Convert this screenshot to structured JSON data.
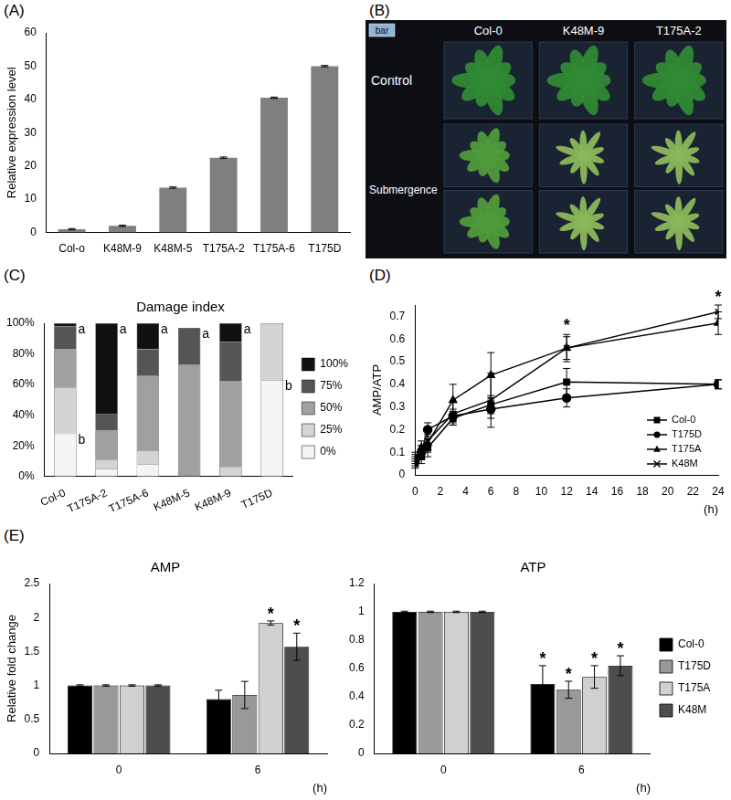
{
  "chart_data": [
    {
      "panel": "(A)",
      "type": "bar",
      "categories": [
        "Col-o",
        "K48M-9",
        "K48M-5",
        "T175A-2",
        "T175A-6",
        "T175D"
      ],
      "values": [
        1,
        2,
        13.5,
        22.5,
        40.5,
        50
      ],
      "errors": [
        0.2,
        0.2,
        0.2,
        0.2,
        0.2,
        0.2
      ],
      "color": "#7f7f7f",
      "y_label": "Relative expression level",
      "ylim": [
        0,
        60
      ],
      "yticks": [
        0,
        10,
        20,
        30,
        40,
        50,
        60
      ],
      "grid": false
    },
    {
      "panel": "(C)",
      "type": "bar",
      "title": "Damage index",
      "stacked": true,
      "categories": [
        "Col-0",
        "T175A-2",
        "T175A-6",
        "K48M-5",
        "K48M-9",
        "T175D"
      ],
      "series": [
        {
          "name": "0%",
          "color": "#f5f5f5",
          "values": [
            28,
            5,
            8,
            0,
            0,
            63
          ]
        },
        {
          "name": "25%",
          "color": "#d4d4d4",
          "values": [
            30,
            6,
            9,
            0,
            6,
            37
          ]
        },
        {
          "name": "50%",
          "color": "#a0a0a0",
          "values": [
            25,
            19,
            49,
            73,
            56,
            0
          ]
        },
        {
          "name": "75%",
          "color": "#555555",
          "values": [
            15,
            11,
            17,
            24,
            26,
            0
          ]
        },
        {
          "name": "100%",
          "color": "#111111",
          "values": [
            2,
            59,
            17,
            0,
            12,
            0
          ]
        }
      ],
      "ylim": [
        0,
        100
      ],
      "yticks": [
        {
          "value": 0,
          "label": "0%"
        },
        {
          "value": 20,
          "label": "20%"
        },
        {
          "value": 40,
          "label": "40%"
        },
        {
          "value": 60,
          "label": "60%"
        },
        {
          "value": 80,
          "label": "80%"
        },
        {
          "value": 100,
          "label": "100%"
        }
      ],
      "legend": "right",
      "grid": false,
      "annotations": [
        {
          "category": "Col-0",
          "value": 100,
          "text": "a"
        },
        {
          "category": "Col-0",
          "value": 28,
          "text": "b"
        },
        {
          "category": "T175A-2",
          "value": 100,
          "text": "a"
        },
        {
          "category": "T175A-6",
          "value": 100,
          "text": "a"
        },
        {
          "category": "K48M-5",
          "value": 97,
          "text": "a"
        },
        {
          "category": "K48M-9",
          "value": 100,
          "text": "a"
        },
        {
          "category": "T175D",
          "value": 63,
          "text": "b"
        }
      ]
    },
    {
      "panel": "(D)",
      "type": "line",
      "x": [
        0,
        0.5,
        1,
        3,
        6,
        12,
        24
      ],
      "series": [
        {
          "name": "Col-0",
          "color": "#000000",
          "marker": "square",
          "values": [
            0.05,
            0.08,
            0.12,
            0.25,
            0.31,
            0.41,
            0.4
          ],
          "errors": [
            0.02,
            0.03,
            0.04,
            0.03,
            0.04,
            0.06,
            0.02
          ]
        },
        {
          "name": "T175D",
          "color": "#000000",
          "marker": "circle",
          "values": [
            0.06,
            0.1,
            0.2,
            0.26,
            0.29,
            0.34,
            0.4
          ],
          "errors": [
            0.02,
            0.03,
            0.03,
            0.03,
            0.04,
            0.04,
            0.02
          ]
        },
        {
          "name": "T175A",
          "color": "#000000",
          "marker": "triangle",
          "values": [
            0.07,
            0.12,
            0.14,
            0.33,
            0.44,
            0.56,
            0.67
          ],
          "errors": [
            0.02,
            0.03,
            0.04,
            0.07,
            0.1,
            0.06,
            0.05
          ]
        },
        {
          "name": "K48M",
          "color": "#000000",
          "marker": "cross",
          "values": [
            0.08,
            0.1,
            0.15,
            0.27,
            0.33,
            0.56,
            0.72
          ],
          "errors": [
            0.02,
            0.03,
            0.04,
            0.05,
            0.12,
            0.05,
            0.03
          ]
        }
      ],
      "x_label": "(h)",
      "y_label": "AMP/ATP",
      "xlim": [
        0,
        24
      ],
      "xticks": [
        0,
        2,
        4,
        6,
        8,
        10,
        12,
        14,
        16,
        18,
        20,
        22,
        24
      ],
      "ylim": [
        0,
        0.75
      ],
      "yticks": [
        0,
        0.1,
        0.2,
        0.3,
        0.4,
        0.5,
        0.6,
        0.7
      ],
      "legend": "lower right",
      "grid": false,
      "annotations": [
        {
          "x": 12,
          "y": 0.62,
          "text": "*"
        },
        {
          "x": 24,
          "y": 0.745,
          "text": "*"
        }
      ]
    },
    {
      "panel": "(E)",
      "type": "bar",
      "title": "AMP",
      "categories": [
        "0",
        "6"
      ],
      "series": [
        {
          "name": "Col-0",
          "color": "#000000",
          "values": [
            1,
            0.8
          ],
          "errors": [
            0.01,
            0.13
          ]
        },
        {
          "name": "T175D",
          "color": "#999999",
          "values": [
            1,
            0.86
          ],
          "errors": [
            0.01,
            0.2
          ]
        },
        {
          "name": "T175A",
          "color": "#d0d0d0",
          "values": [
            1,
            1.92
          ],
          "errors": [
            0.01,
            0.03
          ]
        },
        {
          "name": "K48M",
          "color": "#4d4d4d",
          "values": [
            1,
            1.57
          ],
          "errors": [
            0.01,
            0.2
          ]
        }
      ],
      "x_label": "(h)",
      "y_label": "Relative fold change",
      "ylim": [
        0,
        2.5
      ],
      "yticks": [
        0,
        0.5,
        1,
        1.5,
        2,
        2.5
      ],
      "grid": false,
      "annotations": [
        {
          "category": "6",
          "series": "T175A",
          "text": "*"
        },
        {
          "category": "6",
          "series": "K48M",
          "text": "*"
        }
      ]
    },
    {
      "type": "bar",
      "title": "ATP",
      "categories": [
        "0",
        "6"
      ],
      "series": [
        {
          "name": "Col-0",
          "color": "#000000",
          "values": [
            1,
            0.49
          ],
          "errors": [
            0.005,
            0.13
          ]
        },
        {
          "name": "T175D",
          "color": "#999999",
          "values": [
            1,
            0.45
          ],
          "errors": [
            0.005,
            0.06
          ]
        },
        {
          "name": "T175A",
          "color": "#d0d0d0",
          "values": [
            1,
            0.54
          ],
          "errors": [
            0.005,
            0.08
          ]
        },
        {
          "name": "K48M",
          "color": "#4d4d4d",
          "values": [
            1,
            0.62
          ],
          "errors": [
            0.005,
            0.07
          ]
        }
      ],
      "x_label": "(h)",
      "ylim": [
        0,
        1.2
      ],
      "yticks": [
        0,
        0.2,
        0.4,
        0.6,
        0.8,
        1,
        1.2
      ],
      "grid": false,
      "legend": "right",
      "annotations": [
        {
          "category": "6",
          "series": "Col-0",
          "text": "*"
        },
        {
          "category": "6",
          "series": "T175D",
          "text": "*"
        },
        {
          "category": "6",
          "series": "T175A",
          "text": "*"
        },
        {
          "category": "6",
          "series": "K48M",
          "text": "*"
        }
      ]
    }
  ],
  "photo": {
    "panel": "(B)",
    "columns": [
      "Col-0",
      "K48M-9",
      "T175A-2"
    ],
    "rows": [
      "Control",
      "Submergence"
    ],
    "scale_label": "bar"
  }
}
